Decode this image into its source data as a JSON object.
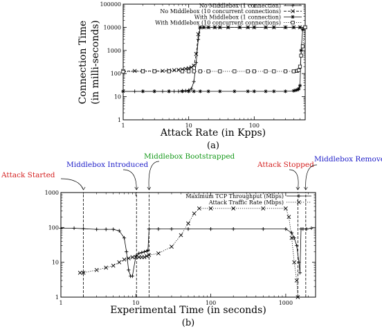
{
  "chart_data": [
    {
      "type": "line",
      "panel_label": "(a)",
      "title": "",
      "xlabel": "Attack Rate (in Kpps)",
      "ylabel": "Connection Time",
      "ylabel_line2": "(in milli-seconds)",
      "xscale": "log",
      "yscale": "log",
      "xlim": [
        1,
        600
      ],
      "ylim": [
        1,
        100000
      ],
      "xticks": [
        1,
        10,
        100
      ],
      "xtick_labels": [
        "1",
        "10",
        "100"
      ],
      "yticks": [
        1,
        10,
        100,
        1000,
        10000,
        100000
      ],
      "ytick_labels": [
        "1",
        "10",
        "100",
        "1000",
        "10000",
        "100000"
      ],
      "grid": false,
      "legend_position": "top-right",
      "series": [
        {
          "name": "No Middlebox (1 connection)",
          "marker": "plus",
          "linestyle": "solid",
          "x": [
            1,
            1.5,
            2,
            3,
            4,
            5,
            6,
            7,
            8,
            9,
            10,
            11,
            12,
            13,
            14,
            15,
            17,
            20,
            25,
            30,
            40,
            60,
            80,
            100,
            150,
            200,
            300,
            400,
            500,
            600
          ],
          "y": [
            17,
            17,
            17,
            17,
            17,
            17,
            17,
            17,
            18,
            18,
            19,
            22,
            45,
            300,
            3000,
            10000,
            10000,
            10000,
            10000,
            10000,
            10000,
            10000,
            10000,
            10000,
            10000,
            10000,
            10000,
            10000,
            10000,
            10000
          ]
        },
        {
          "name": "No Middlebox (10 concurrent connections)",
          "marker": "x",
          "linestyle": "dashed",
          "x": [
            1,
            1.5,
            2,
            3,
            4,
            5,
            6,
            7,
            8,
            9,
            10,
            11,
            12,
            13,
            14,
            15,
            17,
            20,
            25,
            30,
            40,
            60,
            80,
            100,
            150,
            200,
            300,
            400,
            500,
            600
          ],
          "y": [
            130,
            130,
            130,
            130,
            130,
            135,
            140,
            145,
            150,
            160,
            170,
            185,
            220,
            700,
            5000,
            10000,
            10000,
            10000,
            10000,
            10000,
            10000,
            10000,
            10000,
            10000,
            10000,
            10000,
            10000,
            10000,
            10000,
            10000
          ]
        },
        {
          "name": "With Middlebox (1 connection)",
          "marker": "star",
          "linestyle": "solid",
          "x": [
            1,
            2,
            3,
            5,
            8,
            10,
            12,
            15,
            20,
            30,
            50,
            80,
            100,
            150,
            200,
            300,
            400,
            430,
            460,
            480,
            500,
            520,
            550,
            600
          ],
          "y": [
            17,
            17,
            17,
            17,
            17,
            17,
            17,
            17,
            17,
            17,
            17,
            17,
            17,
            17,
            17,
            17,
            18,
            19,
            20,
            22,
            30,
            1000,
            8000,
            10000
          ]
        },
        {
          "name": "With Middlebox (10 concurrent connections)",
          "marker": "square",
          "linestyle": "dotted",
          "x": [
            1,
            2,
            3,
            5,
            8,
            10,
            12,
            15,
            20,
            30,
            50,
            80,
            100,
            150,
            200,
            300,
            400,
            450,
            480,
            500,
            520,
            550,
            600
          ],
          "y": [
            120,
            125,
            125,
            125,
            125,
            125,
            125,
            125,
            125,
            125,
            125,
            125,
            125,
            125,
            125,
            125,
            125,
            130,
            140,
            200,
            600,
            1500,
            10000
          ]
        }
      ]
    },
    {
      "type": "line",
      "panel_label": "(b)",
      "title": "",
      "xlabel": "Experimental Time (in seconds)",
      "ylabel": "",
      "xscale": "log",
      "yscale": "log",
      "xlim": [
        1,
        2500
      ],
      "ylim": [
        1,
        1000
      ],
      "xticks": [
        1,
        10,
        100,
        1000
      ],
      "xtick_labels": [
        "1",
        "10",
        "100",
        "1000"
      ],
      "yticks": [
        1,
        10,
        100,
        1000
      ],
      "ytick_labels": [
        "1",
        "10",
        "100",
        "1000"
      ],
      "grid": false,
      "legend_position": "top-right",
      "series": [
        {
          "name": "Maximum TCP Throughput (Mbps)",
          "marker": "plus",
          "linestyle": "solid",
          "x": [
            1,
            1.5,
            2,
            3,
            4,
            5,
            6,
            7,
            7.5,
            8,
            8.5,
            9,
            10,
            11,
            12,
            13,
            14,
            14.5,
            15,
            20,
            30,
            50,
            100,
            200,
            500,
            1000,
            1200,
            1300,
            1400,
            1500,
            1550,
            1600,
            1700,
            1900,
            2200
          ],
          "y": [
            95,
            95,
            92,
            88,
            88,
            88,
            80,
            50,
            20,
            6,
            4,
            4,
            15,
            18,
            19,
            20,
            21,
            22,
            90,
            90,
            90,
            90,
            90,
            90,
            90,
            90,
            70,
            50,
            30,
            10,
            5,
            90,
            90,
            90,
            95
          ]
        },
        {
          "name": "Attack Traffic Rate (Mbps)",
          "marker": "x",
          "linestyle": "dotted",
          "x": [
            1.8,
            2,
            3,
            4,
            5,
            6,
            7,
            8,
            9,
            10,
            11,
            12,
            13,
            14,
            15,
            20,
            30,
            40,
            50,
            60,
            70,
            100,
            200,
            500,
            1000,
            1100,
            1200,
            1300,
            1400,
            1450
          ],
          "y": [
            5,
            5,
            6,
            7,
            8,
            10,
            12,
            13,
            14,
            14,
            14,
            14,
            14,
            15,
            16,
            18,
            28,
            60,
            130,
            250,
            350,
            350,
            350,
            350,
            350,
            200,
            50,
            10,
            3,
            1
          ]
        }
      ],
      "annotations": [
        {
          "text": "Attack Started",
          "x": 2,
          "color": "#d42020"
        },
        {
          "text": "Middlebox Introduced",
          "x": 10.2,
          "color": "#1c1cc8"
        },
        {
          "text": "Middlebox Bootstrapped",
          "x": 15,
          "color": "#15991a"
        },
        {
          "text": "Attack Stopped",
          "x": 1450,
          "color": "#d42020"
        },
        {
          "text": "Middlebox Removed",
          "x": 1850,
          "color": "#1c1cc8"
        }
      ]
    }
  ]
}
